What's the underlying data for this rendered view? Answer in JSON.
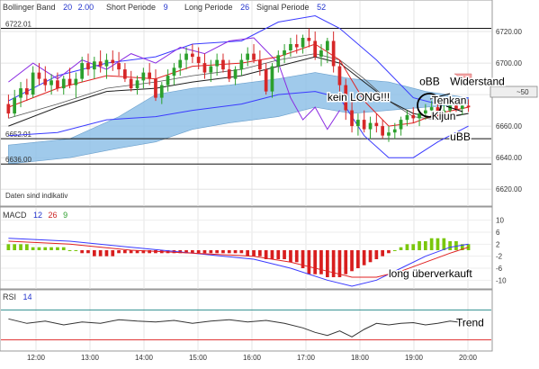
{
  "main_header": {
    "indicator": "Bollinger Band",
    "p1": "20",
    "p2": "2.00",
    "short_label": "Short Periode",
    "short_val": "9",
    "long_label": "Long Periode",
    "long_val": "26",
    "signal_label": "Signal Periode",
    "signal_val": "52"
  },
  "disclaimer": "Daten sind indikativ",
  "macd_header": {
    "label": "MACD",
    "p1": "12",
    "p2": "26",
    "p3": "9"
  },
  "rsi_header": {
    "label": "RSI",
    "p1": "14"
  },
  "price_badge": "~50",
  "colors": {
    "candle_up": "#2ca02c",
    "candle_down": "#d62728",
    "bollinger": "#3a3aff",
    "cloud": "#8fc1e8",
    "tenkan": "#e02020",
    "kijun": "#202020",
    "chikou": "#8a2be2",
    "macd_up": "#7ac70c",
    "macd_down": "#d81e1e",
    "rsi_line": "#333333",
    "rsi_upper": "#2f8f8f",
    "rsi_lower": "#e03030"
  },
  "chart_data": [
    {
      "type": "candlestick",
      "title": "",
      "x_ticks": [
        "12:00",
        "13:00",
        "14:00",
        "15:00",
        "16:00",
        "17:00",
        "18:00",
        "19:00",
        "20:00"
      ],
      "y_ticks": [
        6620.0,
        6640.0,
        6660.0,
        6680.0,
        6700.0,
        6720.0
      ],
      "ylim": [
        6611,
        6732
      ],
      "horizontal_levels": [
        {
          "label": "6722.01",
          "value": 6722.01
        },
        {
          "label": "6652.01",
          "value": 6652.01
        },
        {
          "label": "6636.00",
          "value": 6636.0
        }
      ],
      "candles": [
        [
          6674,
          6680,
          6665,
          6668
        ],
        [
          6668,
          6683,
          6666,
          6678
        ],
        [
          6678,
          6688,
          6672,
          6684
        ],
        [
          6684,
          6690,
          6676,
          6680
        ],
        [
          6680,
          6698,
          6678,
          6694
        ],
        [
          6694,
          6700,
          6686,
          6690
        ],
        [
          6690,
          6698,
          6682,
          6686
        ],
        [
          6686,
          6693,
          6680,
          6689
        ],
        [
          6689,
          6694,
          6682,
          6684
        ],
        [
          6684,
          6692,
          6680,
          6690
        ],
        [
          6690,
          6697,
          6684,
          6686
        ],
        [
          6686,
          6694,
          6678,
          6690
        ],
        [
          6690,
          6704,
          6688,
          6700
        ],
        [
          6700,
          6706,
          6692,
          6696
        ],
        [
          6696,
          6704,
          6690,
          6701
        ],
        [
          6701,
          6708,
          6694,
          6698
        ],
        [
          6698,
          6706,
          6690,
          6702
        ],
        [
          6702,
          6708,
          6695,
          6700
        ],
        [
          6700,
          6707,
          6692,
          6696
        ],
        [
          6696,
          6700,
          6688,
          6690
        ],
        [
          6690,
          6695,
          6682,
          6684
        ],
        [
          6684,
          6692,
          6680,
          6689
        ],
        [
          6689,
          6697,
          6684,
          6694
        ],
        [
          6694,
          6700,
          6686,
          6690
        ],
        [
          6690,
          6696,
          6676,
          6678
        ],
        [
          6678,
          6688,
          6674,
          6686
        ],
        [
          6686,
          6696,
          6682,
          6692
        ],
        [
          6692,
          6700,
          6686,
          6697
        ],
        [
          6697,
          6706,
          6692,
          6702
        ],
        [
          6702,
          6710,
          6696,
          6706
        ],
        [
          6706,
          6712,
          6700,
          6704
        ],
        [
          6704,
          6710,
          6696,
          6700
        ],
        [
          6700,
          6706,
          6690,
          6694
        ],
        [
          6694,
          6702,
          6688,
          6698
        ],
        [
          6698,
          6706,
          6692,
          6702
        ],
        [
          6702,
          6706,
          6694,
          6696
        ],
        [
          6696,
          6702,
          6688,
          6690
        ],
        [
          6690,
          6698,
          6686,
          6696
        ],
        [
          6696,
          6706,
          6692,
          6702
        ],
        [
          6702,
          6710,
          6698,
          6706
        ],
        [
          6706,
          6712,
          6700,
          6702
        ],
        [
          6702,
          6708,
          6692,
          6696
        ],
        [
          6696,
          6700,
          6680,
          6682
        ],
        [
          6682,
          6700,
          6678,
          6698
        ],
        [
          6698,
          6708,
          6694,
          6705
        ],
        [
          6705,
          6712,
          6700,
          6708
        ],
        [
          6708,
          6716,
          6704,
          6712
        ],
        [
          6712,
          6718,
          6706,
          6710
        ],
        [
          6710,
          6718,
          6706,
          6716
        ],
        [
          6716,
          6722,
          6710,
          6714
        ],
        [
          6714,
          6720,
          6702,
          6704
        ],
        [
          6704,
          6712,
          6698,
          6708
        ],
        [
          6708,
          6716,
          6700,
          6714
        ],
        [
          6714,
          6720,
          6694,
          6698
        ],
        [
          6698,
          6702,
          6682,
          6686
        ],
        [
          6686,
          6690,
          6664,
          6670
        ],
        [
          6670,
          6676,
          6656,
          6660
        ],
        [
          6660,
          6668,
          6654,
          6664
        ],
        [
          6664,
          6670,
          6656,
          6658
        ],
        [
          6658,
          6666,
          6652,
          6662
        ],
        [
          6662,
          6668,
          6656,
          6660
        ],
        [
          6660,
          6664,
          6652,
          6654
        ],
        [
          6654,
          6660,
          6650,
          6656
        ],
        [
          6656,
          6662,
          6652,
          6658
        ],
        [
          6658,
          6666,
          6654,
          6664
        ],
        [
          6664,
          6670,
          6660,
          6667
        ],
        [
          6667,
          6672,
          6662,
          6665
        ],
        [
          6665,
          6670,
          6660,
          6668
        ],
        [
          6668,
          6674,
          6664,
          6670
        ],
        [
          6670,
          6676,
          6666,
          6672
        ],
        [
          6672,
          6676,
          6666,
          6668
        ],
        [
          6668,
          6674,
          6664,
          6670
        ],
        [
          6670,
          6676,
          6666,
          6673
        ],
        [
          6673,
          6677,
          6669,
          6671
        ],
        [
          6671,
          6675,
          6667,
          6673
        ],
        [
          6673,
          6677,
          6669,
          6672
        ]
      ],
      "bollinger_upper": [
        [
          0,
          6676
        ],
        [
          8,
          6692
        ],
        [
          16,
          6700
        ],
        [
          24,
          6704
        ],
        [
          30,
          6712
        ],
        [
          38,
          6714
        ],
        [
          44,
          6726
        ],
        [
          50,
          6730
        ],
        [
          54,
          6722
        ],
        [
          60,
          6702
        ],
        [
          66,
          6678
        ],
        [
          70,
          6674
        ],
        [
          75,
          6678
        ]
      ],
      "bollinger_lower": [
        [
          0,
          6654
        ],
        [
          8,
          6656
        ],
        [
          16,
          6664
        ],
        [
          24,
          6666
        ],
        [
          30,
          6670
        ],
        [
          38,
          6674
        ],
        [
          44,
          6680
        ],
        [
          50,
          6682
        ],
        [
          54,
          6678
        ],
        [
          58,
          6654
        ],
        [
          62,
          6640
        ],
        [
          66,
          6640
        ],
        [
          70,
          6650
        ],
        [
          75,
          6660
        ]
      ],
      "bollinger_middle": [
        [
          0,
          6665
        ],
        [
          8,
          6674
        ],
        [
          16,
          6684
        ],
        [
          24,
          6688
        ],
        [
          30,
          6692
        ],
        [
          38,
          6696
        ],
        [
          44,
          6702
        ],
        [
          50,
          6706
        ],
        [
          54,
          6702
        ],
        [
          58,
          6690
        ],
        [
          62,
          6676
        ],
        [
          66,
          6666
        ],
        [
          70,
          6664
        ],
        [
          75,
          6668
        ]
      ],
      "tenkan": [
        [
          0,
          6672
        ],
        [
          8,
          6684
        ],
        [
          16,
          6692
        ],
        [
          24,
          6690
        ],
        [
          30,
          6698
        ],
        [
          38,
          6700
        ],
        [
          44,
          6704
        ],
        [
          50,
          6712
        ],
        [
          54,
          6702
        ],
        [
          58,
          6676
        ],
        [
          62,
          6660
        ],
        [
          66,
          6662
        ],
        [
          70,
          6668
        ],
        [
          75,
          6672
        ]
      ],
      "kijun": [
        [
          0,
          6660
        ],
        [
          8,
          6672
        ],
        [
          16,
          6682
        ],
        [
          24,
          6684
        ],
        [
          30,
          6688
        ],
        [
          38,
          6692
        ],
        [
          44,
          6698
        ],
        [
          50,
          6704
        ],
        [
          54,
          6700
        ],
        [
          58,
          6688
        ],
        [
          62,
          6676
        ],
        [
          66,
          6668
        ],
        [
          70,
          6665
        ],
        [
          75,
          6668
        ]
      ],
      "chikou": [
        [
          0,
          6688
        ],
        [
          4,
          6700
        ],
        [
          8,
          6690
        ],
        [
          12,
          6702
        ],
        [
          16,
          6696
        ],
        [
          20,
          6706
        ],
        [
          24,
          6700
        ],
        [
          28,
          6710
        ],
        [
          32,
          6706
        ],
        [
          36,
          6714
        ],
        [
          40,
          6716
        ],
        [
          44,
          6700
        ],
        [
          46,
          6678
        ],
        [
          48,
          6664
        ],
        [
          50,
          6672
        ],
        [
          52,
          6658
        ],
        [
          54,
          6670
        ]
      ],
      "cloud_top": [
        [
          0,
          6648
        ],
        [
          10,
          6652
        ],
        [
          18,
          6666
        ],
        [
          24,
          6680
        ],
        [
          30,
          6684
        ],
        [
          36,
          6686
        ],
        [
          44,
          6690
        ],
        [
          50,
          6694
        ],
        [
          56,
          6690
        ],
        [
          62,
          6688
        ],
        [
          68,
          6682
        ],
        [
          75,
          6678
        ]
      ],
      "cloud_bottom": [
        [
          0,
          6636
        ],
        [
          10,
          6640
        ],
        [
          18,
          6646
        ],
        [
          24,
          6650
        ],
        [
          30,
          6658
        ],
        [
          36,
          6662
        ],
        [
          44,
          6666
        ],
        [
          50,
          6672
        ],
        [
          56,
          6668
        ],
        [
          62,
          6670
        ],
        [
          68,
          6672
        ],
        [
          75,
          6674
        ]
      ],
      "annotations": [
        {
          "text": "oBB",
          "x": 67,
          "y": 6686
        },
        {
          "text": "Widerstand",
          "x": 72,
          "y": 6686
        },
        {
          "text": "kein LONG!!!",
          "x": 52,
          "y": 6676
        },
        {
          "text": "Tenkan",
          "x": 69,
          "y": 6674
        },
        {
          "text": "Kijun",
          "x": 69,
          "y": 6664
        },
        {
          "text": "uBB",
          "x": 72,
          "y": 6651
        }
      ]
    },
    {
      "type": "bar",
      "title": "",
      "y_ticks": [
        10,
        6,
        2,
        -2,
        -6,
        -10
      ],
      "ylim": [
        -12,
        12
      ],
      "histogram": [
        2,
        2,
        2,
        2,
        1,
        1,
        1,
        1,
        1,
        1,
        0,
        0,
        -1,
        -1,
        -2,
        -2,
        -2,
        -2,
        -1,
        -1,
        -1,
        -1,
        -1,
        -1,
        -1,
        -1,
        -1,
        -1,
        -1,
        -1,
        -1,
        -1,
        -1,
        -1,
        -1,
        -1,
        -1,
        -1,
        -1,
        -2,
        -2,
        -2,
        -3,
        -3,
        -3,
        -3,
        -4,
        -4,
        -6,
        -8,
        -8,
        -8,
        -9,
        -9,
        -9,
        -8,
        -7,
        -6,
        -5,
        -4,
        -3,
        -2,
        -1,
        0,
        1,
        2,
        2,
        3,
        3,
        4,
        4,
        4,
        3,
        3,
        2,
        2
      ],
      "macd_line": [
        [
          0,
          4
        ],
        [
          10,
          3
        ],
        [
          20,
          1
        ],
        [
          30,
          -1
        ],
        [
          40,
          -3
        ],
        [
          46,
          -6
        ],
        [
          52,
          -10
        ],
        [
          56,
          -12
        ],
        [
          60,
          -10
        ],
        [
          64,
          -6
        ],
        [
          68,
          -2
        ],
        [
          72,
          1
        ],
        [
          75,
          2
        ]
      ],
      "signal_line": [
        [
          0,
          3
        ],
        [
          10,
          2
        ],
        [
          20,
          0
        ],
        [
          30,
          -1
        ],
        [
          40,
          -2
        ],
        [
          46,
          -4
        ],
        [
          52,
          -7
        ],
        [
          56,
          -9
        ],
        [
          60,
          -9
        ],
        [
          64,
          -7
        ],
        [
          68,
          -4
        ],
        [
          72,
          -1
        ],
        [
          75,
          1
        ]
      ],
      "annotations": [
        {
          "text": "long überverkauft",
          "x": 62,
          "y": -9
        }
      ]
    },
    {
      "type": "line",
      "title": "",
      "upper_level": 70,
      "lower_level": 30,
      "ylim": [
        20,
        80
      ],
      "rsi": [
        [
          0,
          58
        ],
        [
          3,
          52
        ],
        [
          6,
          55
        ],
        [
          9,
          50
        ],
        [
          12,
          54
        ],
        [
          15,
          52
        ],
        [
          18,
          57
        ],
        [
          21,
          55
        ],
        [
          24,
          54
        ],
        [
          27,
          56
        ],
        [
          30,
          52
        ],
        [
          33,
          55
        ],
        [
          36,
          57
        ],
        [
          39,
          54
        ],
        [
          42,
          56
        ],
        [
          45,
          52
        ],
        [
          48,
          46
        ],
        [
          50,
          40
        ],
        [
          52,
          36
        ],
        [
          54,
          42
        ],
        [
          56,
          34
        ],
        [
          58,
          44
        ],
        [
          60,
          52
        ],
        [
          62,
          50
        ],
        [
          64,
          52
        ],
        [
          66,
          53
        ],
        [
          68,
          50
        ],
        [
          70,
          52
        ],
        [
          72,
          55
        ],
        [
          75,
          52
        ]
      ],
      "annotations": [
        {
          "text": "Trend",
          "x": 73,
          "y": 48
        }
      ]
    }
  ]
}
